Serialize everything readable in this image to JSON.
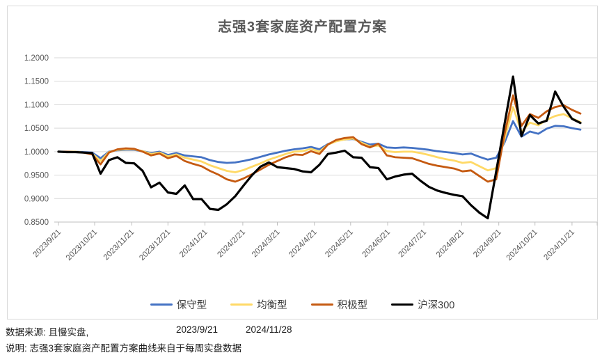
{
  "title": "志强3套家庭资产配置方案",
  "chart_data": {
    "type": "line",
    "title": "志强3套家庭资产配置方案",
    "x_tick_labels": [
      "2023/9/21",
      "2023/10/21",
      "2023/11/21",
      "2023/12/21",
      "2024/1/21",
      "2024/2/21",
      "2024/3/21",
      "2024/4/21",
      "2024/5/21",
      "2024/6/21",
      "2024/7/21",
      "2024/8/21",
      "2024/9/21",
      "2024/10/21",
      "2024/11/21"
    ],
    "x_tick_weeks": [
      0,
      4.3,
      8.7,
      13,
      17.4,
      21.9,
      26,
      30.4,
      34.7,
      39.1,
      43.4,
      47.9,
      52.3,
      56.6,
      61
    ],
    "x_total_weeks": 62,
    "x_range_shown": [
      "2023/9/21",
      "2024/11/28"
    ],
    "y_ticks": [
      1.2,
      1.15,
      1.1,
      1.05,
      1.0,
      0.95,
      0.9,
      0.85
    ],
    "ylim": [
      0.85,
      1.2
    ],
    "grid": true,
    "grid_color": "#d9d9d9",
    "axis_label_color": "#595959",
    "legend_position": "bottom",
    "series": [
      {
        "id": "conservative",
        "name": "保守型",
        "color": "#4472c4",
        "values": [
          1.0,
          1.0,
          1.0,
          0.999,
          0.998,
          0.986,
          1.0,
          1.003,
          1.004,
          1.004,
          1.001,
          0.997,
          1.0,
          0.993,
          0.997,
          0.992,
          0.99,
          0.988,
          0.982,
          0.978,
          0.976,
          0.977,
          0.98,
          0.984,
          0.989,
          0.994,
          0.998,
          1.002,
          1.005,
          1.007,
          1.01,
          1.005,
          1.016,
          1.023,
          1.026,
          1.027,
          1.021,
          1.015,
          1.017,
          1.009,
          1.008,
          1.009,
          1.008,
          1.006,
          1.004,
          1.001,
          0.999,
          0.997,
          0.994,
          0.996,
          0.989,
          0.983,
          0.987,
          1.02,
          1.065,
          1.032,
          1.043,
          1.038,
          1.049,
          1.055,
          1.054,
          1.05,
          1.047
        ]
      },
      {
        "id": "balanced",
        "name": "均衡型",
        "color": "#ffd966",
        "values": [
          1.0,
          1.0,
          1.0,
          0.998,
          0.996,
          0.98,
          0.999,
          1.004,
          1.005,
          1.005,
          1.001,
          0.995,
          0.998,
          0.99,
          0.994,
          0.987,
          0.983,
          0.979,
          0.971,
          0.965,
          0.959,
          0.956,
          0.961,
          0.968,
          0.975,
          0.983,
          0.989,
          0.995,
          1.0,
          1.001,
          1.006,
          1.0,
          1.015,
          1.022,
          1.026,
          1.028,
          1.019,
          1.011,
          1.013,
          1.001,
          0.999,
          1.0,
          1.0,
          0.997,
          0.993,
          0.988,
          0.984,
          0.981,
          0.976,
          0.978,
          0.969,
          0.96,
          0.965,
          1.028,
          1.095,
          1.042,
          1.062,
          1.056,
          1.068,
          1.076,
          1.08,
          1.071,
          1.063
        ]
      },
      {
        "id": "aggressive",
        "name": "积极型",
        "color": "#c55a11",
        "values": [
          1.0,
          1.0,
          0.999,
          0.998,
          0.994,
          0.973,
          0.998,
          1.005,
          1.007,
          1.006,
          1.0,
          0.992,
          0.996,
          0.986,
          0.991,
          0.98,
          0.974,
          0.969,
          0.959,
          0.951,
          0.941,
          0.936,
          0.943,
          0.952,
          0.962,
          0.972,
          0.98,
          0.988,
          0.994,
          0.993,
          1.001,
          0.995,
          1.015,
          1.025,
          1.029,
          1.031,
          1.016,
          1.009,
          1.017,
          0.992,
          0.988,
          0.987,
          0.986,
          0.98,
          0.974,
          0.97,
          0.967,
          0.964,
          0.958,
          0.96,
          0.948,
          0.936,
          0.941,
          1.038,
          1.12,
          1.055,
          1.08,
          1.072,
          1.086,
          1.095,
          1.099,
          1.089,
          1.081
        ]
      },
      {
        "id": "csi300",
        "name": "沪深300",
        "color": "#000000",
        "values": [
          1.0,
          0.999,
          0.999,
          0.998,
          0.997,
          0.953,
          0.982,
          0.988,
          0.976,
          0.975,
          0.959,
          0.924,
          0.934,
          0.913,
          0.91,
          0.928,
          0.899,
          0.899,
          0.878,
          0.876,
          0.888,
          0.905,
          0.928,
          0.95,
          0.968,
          0.977,
          0.967,
          0.965,
          0.963,
          0.958,
          0.956,
          0.972,
          0.995,
          0.998,
          1.002,
          0.988,
          0.987,
          0.967,
          0.965,
          0.941,
          0.947,
          0.951,
          0.953,
          0.938,
          0.925,
          0.917,
          0.912,
          0.908,
          0.905,
          0.886,
          0.87,
          0.858,
          0.958,
          1.06,
          1.16,
          1.033,
          1.078,
          1.06,
          1.066,
          1.128,
          1.096,
          1.07,
          1.061
        ]
      }
    ]
  },
  "footer": {
    "source_label": "数据来源: 且慢实盘,",
    "start_date": "2023/9/21",
    "end_date": "2024/11/28",
    "note": "说明: 志强3套家庭资产配置方案曲线来自于每周实盘数据"
  }
}
